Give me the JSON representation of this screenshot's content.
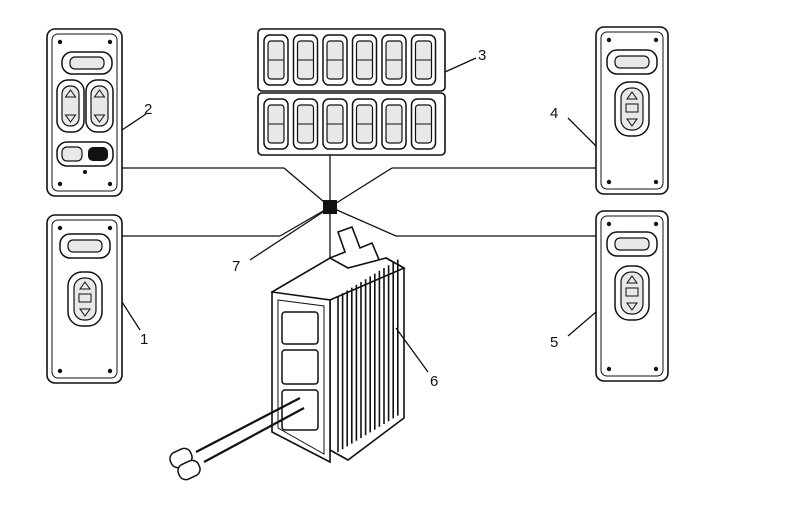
{
  "callouts": {
    "c1": "1",
    "c2": "2",
    "c3": "3",
    "c4": "4",
    "c5": "5",
    "c6": "6",
    "c7": "7"
  },
  "icons": {
    "panel_switch": "window-switch-icon",
    "hub": "junction-box-icon",
    "module": "control-module-icon"
  },
  "colors": {
    "line": "#111111",
    "background": "#ffffff"
  }
}
